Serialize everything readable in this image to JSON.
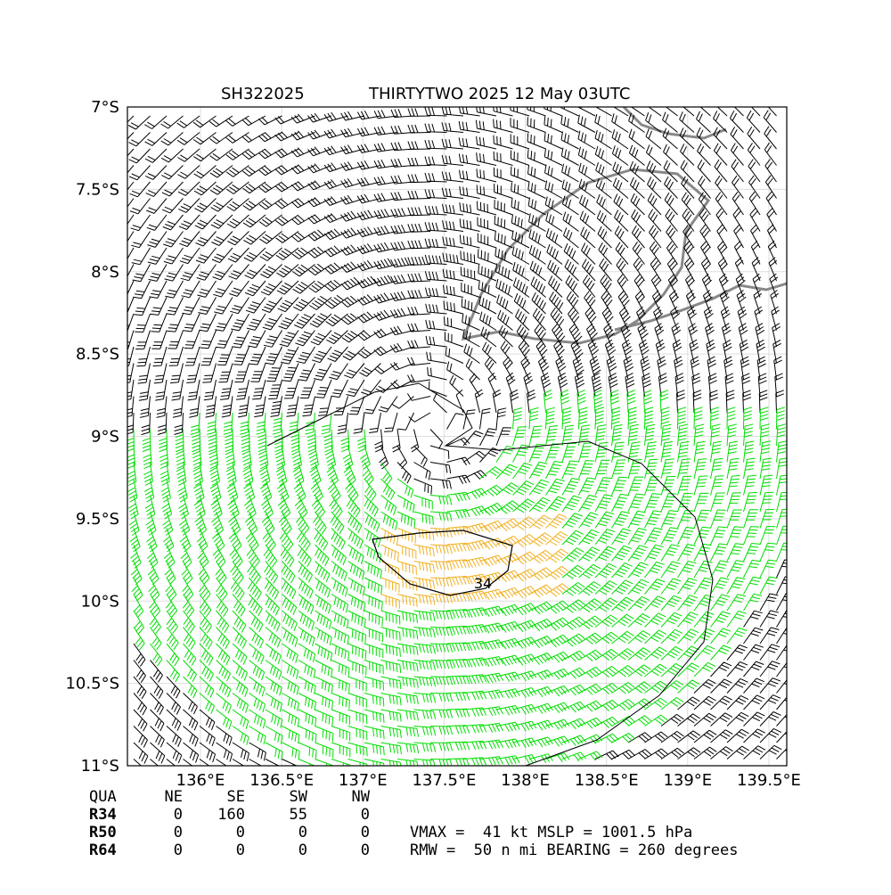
{
  "map": {
    "type": "map",
    "storm_id": "SH322025",
    "title": "THIRTYTWO 2025 12 May 03UTC",
    "xlim": [
      135.55,
      139.61
    ],
    "ylim": [
      -11,
      -7
    ],
    "xticks": [
      {
        "value": 136,
        "label": "136°E"
      },
      {
        "value": 136.5,
        "label": "136.5°E"
      },
      {
        "value": 137,
        "label": "137°E"
      },
      {
        "value": 137.5,
        "label": "137.5°E"
      },
      {
        "value": 138,
        "label": "138°E"
      },
      {
        "value": 138.5,
        "label": "138.5°E"
      },
      {
        "value": 139,
        "label": "139°E"
      },
      {
        "value": 139.5,
        "label": "139.5°E"
      }
    ],
    "yticks": [
      {
        "value": -7,
        "label": "7°S"
      },
      {
        "value": -7.5,
        "label": "7.5°S"
      },
      {
        "value": -8,
        "label": "8°S"
      },
      {
        "value": -8.5,
        "label": "8.5°S"
      },
      {
        "value": -9,
        "label": "9°S"
      },
      {
        "value": -9.5,
        "label": "9.5°S"
      },
      {
        "value": -10,
        "label": "10°S"
      },
      {
        "value": -10.5,
        "label": "10.5°S"
      },
      {
        "value": -11,
        "label": "11°S"
      }
    ],
    "contour_label": "34",
    "grid": true
  },
  "table": {
    "header": [
      "QUA",
      "NE",
      "SE",
      "SW",
      "NW"
    ],
    "rows": [
      [
        "R34",
        0,
        160,
        55,
        0
      ],
      [
        "R50",
        0,
        0,
        0,
        0
      ],
      [
        "R64",
        0,
        0,
        0,
        0
      ]
    ]
  },
  "summary": [
    "VMAX =  41 kt MSLP = 1001.5 hPa",
    "RMW =  50 n mi BEARING = 260 degrees"
  ]
}
